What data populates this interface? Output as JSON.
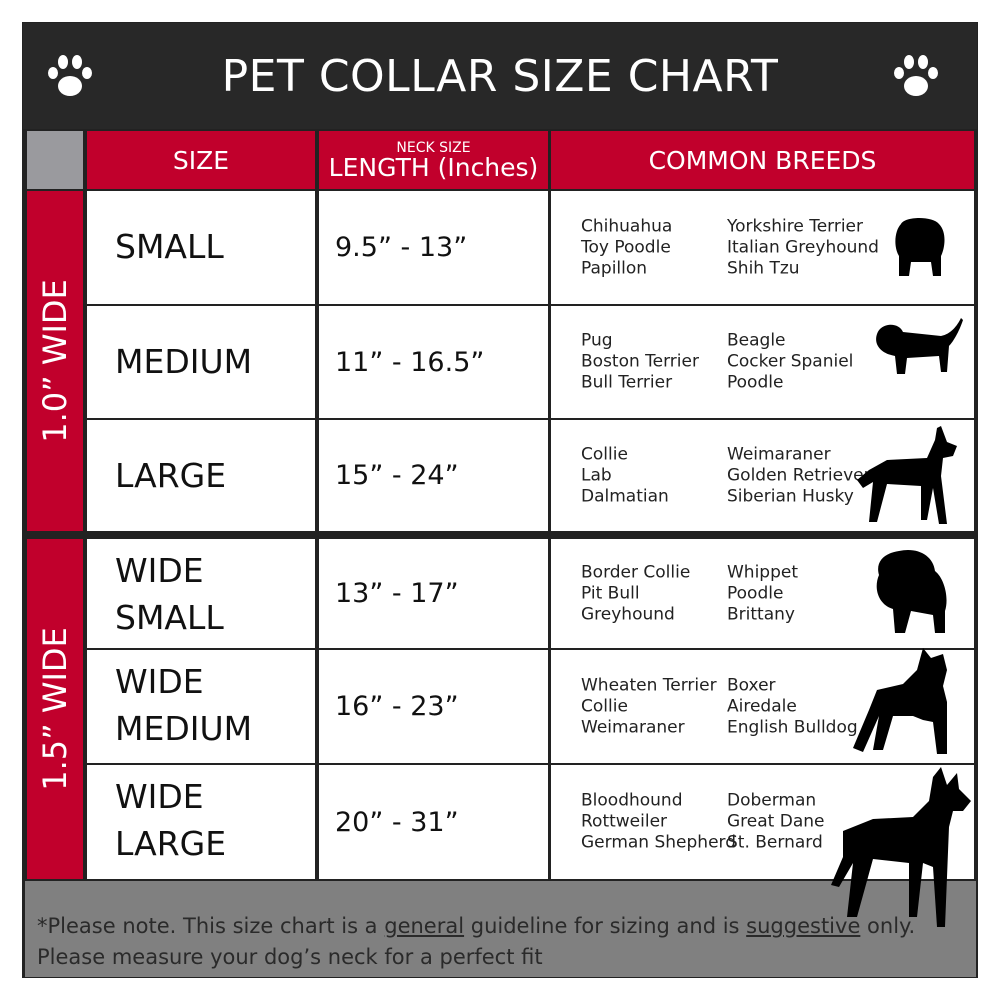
{
  "title": "PET COLLAR SIZE CHART",
  "icons": {
    "left": "paw-print-icon",
    "right": "paw-print-icon"
  },
  "colors": {
    "accent": "#c1002c",
    "title_bar": "#282828",
    "footer": "#808080"
  },
  "header": {
    "size": "SIZE",
    "length_small": "NECK SIZE",
    "length": "LENGTH (Inches)",
    "breeds": "COMMON BREEDS"
  },
  "groups": [
    {
      "label": "1.0” WIDE"
    },
    {
      "label": "1.5” WIDE"
    }
  ],
  "rows": [
    {
      "size": [
        "SMALL"
      ],
      "length": "9.5” - 13”",
      "breeds_a": [
        "Chihuahua",
        "Toy Poodle",
        "Papillon"
      ],
      "breeds_b": [
        "Yorkshire Terrier",
        "Italian Greyhound",
        "Shih Tzu"
      ],
      "icon": "small-dog-silhouette-icon"
    },
    {
      "size": [
        "MEDIUM"
      ],
      "length": "11” - 16.5”",
      "breeds_a": [
        "Pug",
        "Boston Terrier",
        "Bull Terrier"
      ],
      "breeds_b": [
        "Beagle",
        "Cocker Spaniel",
        "Poodle"
      ],
      "icon": "medium-dog-silhouette-icon"
    },
    {
      "size": [
        "LARGE"
      ],
      "length": "15” - 24”",
      "breeds_a": [
        "Collie",
        "Lab",
        "Dalmatian"
      ],
      "breeds_b": [
        "Weimaraner",
        "Golden Retriever",
        "Siberian Husky"
      ],
      "icon": "large-dog-silhouette-icon"
    },
    {
      "size": [
        "WIDE",
        "SMALL"
      ],
      "length": "13” - 17”",
      "breeds_a": [
        "Border Collie",
        "Pit Bull",
        "Greyhound"
      ],
      "breeds_b": [
        "Whippet",
        "Poodle",
        "Brittany"
      ],
      "icon": "bulldog-silhouette-icon"
    },
    {
      "size": [
        "WIDE",
        "MEDIUM"
      ],
      "length": "16” - 23”",
      "breeds_a": [
        "Wheaten Terrier",
        "Collie",
        "Weimaraner"
      ],
      "breeds_b": [
        "Boxer",
        "Airedale",
        "English Bulldog"
      ],
      "icon": "pitbull-silhouette-icon"
    },
    {
      "size": [
        "WIDE",
        "LARGE"
      ],
      "length": "20” - 31”",
      "breeds_a": [
        "Bloodhound",
        "Rottweiler",
        "German Shepherd"
      ],
      "breeds_b": [
        "Doberman",
        "Great Dane",
        "St. Bernard"
      ],
      "icon": "doberman-silhouette-icon"
    }
  ],
  "footer": {
    "p1": "*Please note. This size chart is a ",
    "u1": "general",
    "p2": " guideline for sizing and is ",
    "u2": "suggestive",
    "p3": " only.",
    "line2": "Please measure your dog’s neck for a perfect fit"
  }
}
